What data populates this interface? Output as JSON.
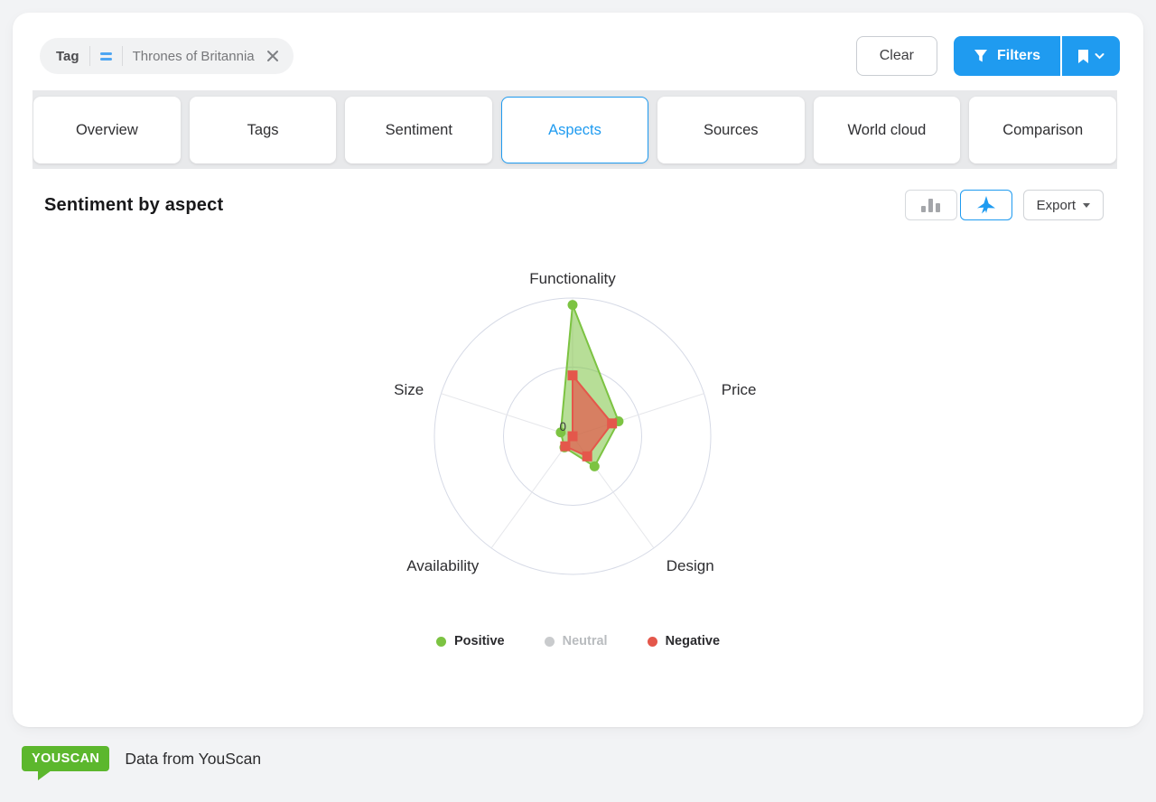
{
  "header": {
    "chip": {
      "label": "Tag",
      "operator_icon": "equals-icon",
      "value": "Thrones of Britannia",
      "remove_icon": "x-icon"
    },
    "clear_label": "Clear",
    "filters_label": "Filters",
    "bookmark_icon": "bookmark-icon"
  },
  "tabs": [
    {
      "label": "Overview",
      "active": false
    },
    {
      "label": "Tags",
      "active": false
    },
    {
      "label": "Sentiment",
      "active": false
    },
    {
      "label": "Aspects",
      "active": true
    },
    {
      "label": "Sources",
      "active": false
    },
    {
      "label": "World cloud",
      "active": false
    },
    {
      "label": "Comparison",
      "active": false
    }
  ],
  "panel": {
    "title": "Sentiment by aspect",
    "toolbar": {
      "view_buttons": [
        "bar-chart-view",
        "radar-chart-view"
      ],
      "active_view": "radar-chart-view",
      "export_label": "Export"
    }
  },
  "chart_data": {
    "type": "radar",
    "title": "Sentiment by aspect",
    "categories": [
      "Functionality",
      "Price",
      "Design",
      "Availability",
      "Size"
    ],
    "min": 0,
    "max": 100,
    "tick_labels": [
      "0"
    ],
    "gridline_circles": [
      0.5,
      1
    ],
    "legend_position": "bottom",
    "series": [
      {
        "name": "Positive",
        "color": "#7cc342",
        "marker": "circle",
        "visible": true,
        "fill_opacity": 0.55,
        "values": [
          95,
          35,
          27,
          10,
          9
        ]
      },
      {
        "name": "Neutral",
        "color": "#c9cbcd",
        "marker": "circle",
        "visible": false,
        "fill_opacity": 0.55,
        "values": null
      },
      {
        "name": "Negative",
        "color": "#e4574b",
        "marker": "square",
        "visible": true,
        "fill_opacity": 0.7,
        "values": [
          44,
          30,
          18,
          9,
          0
        ]
      }
    ]
  },
  "colors": {
    "accent_blue": "#1f9bf0",
    "positive_green": "#7cc342",
    "negative_red": "#e4574b",
    "neutral_gray": "#c9cbcd",
    "grid_line": "#d6dae6",
    "logo_green": "#5cb72d"
  },
  "footer": {
    "logo_text": "YOUSCAN",
    "caption": "Data from YouScan"
  }
}
